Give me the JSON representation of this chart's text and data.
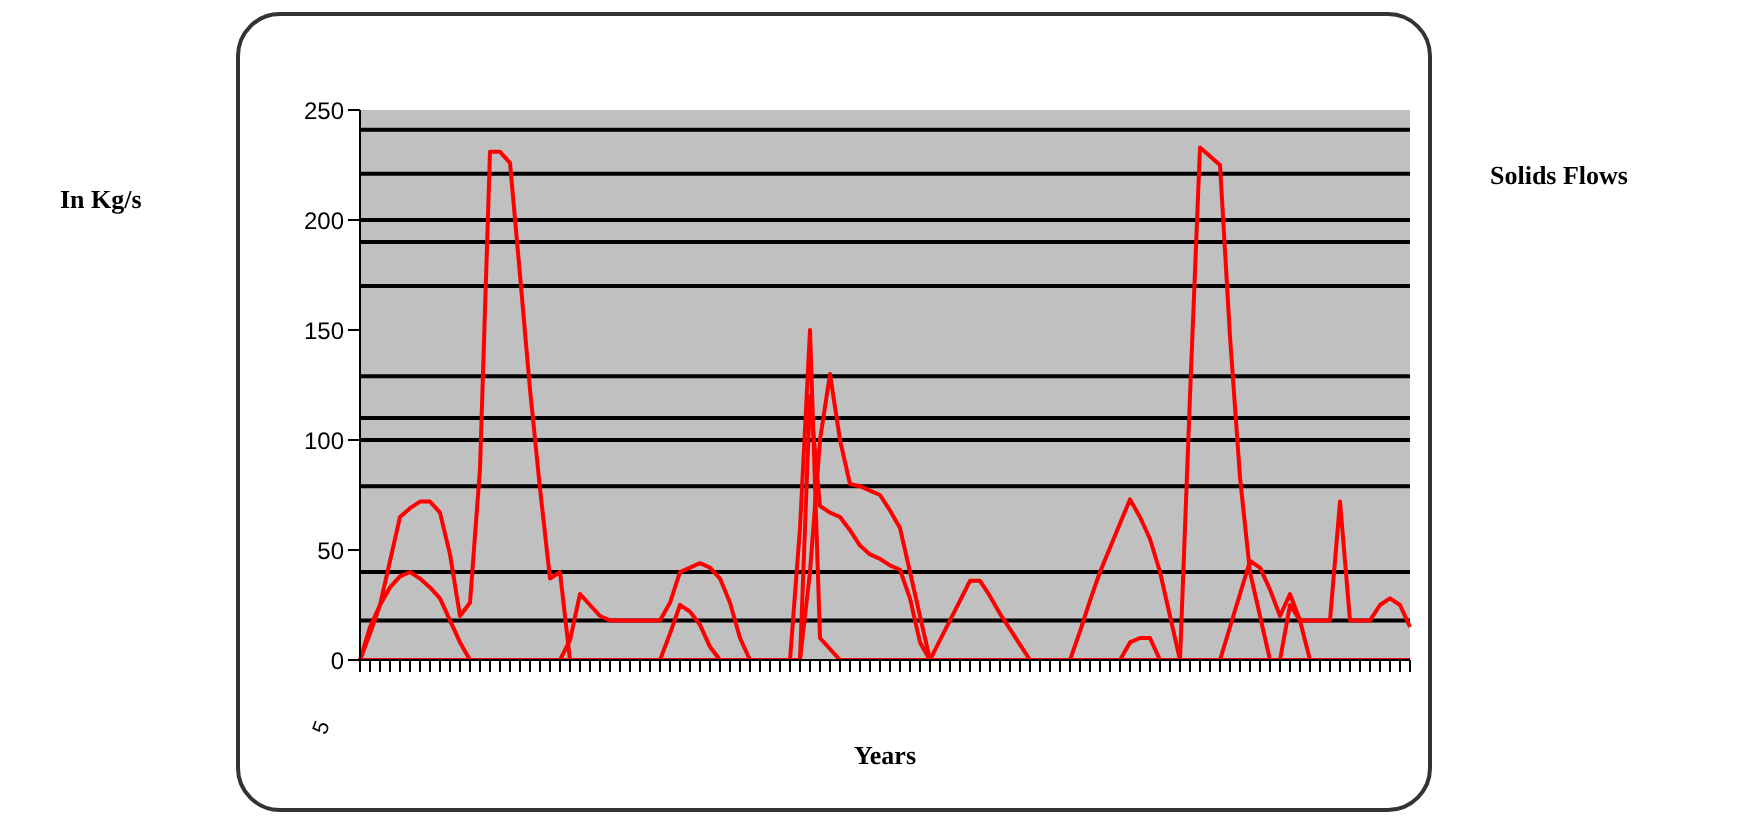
{
  "chart_data": {
    "type": "line",
    "title": "Solids Flows",
    "xlabel": "Years",
    "annotations": [
      "In Kg/s",
      "5"
    ],
    "categories": [
      null,
      null,
      null,
      null,
      null,
      null,
      null,
      null,
      null,
      null,
      null,
      null,
      null,
      null,
      null,
      null,
      null,
      null,
      null,
      null,
      null,
      null,
      null,
      null,
      null,
      null,
      null,
      null,
      null,
      null,
      null,
      null,
      null,
      null,
      null,
      null,
      null,
      null,
      null,
      null,
      null,
      null,
      null,
      null,
      null,
      null,
      null,
      null,
      null,
      null,
      null,
      null,
      null,
      null,
      null,
      null,
      null,
      null,
      null,
      null,
      null,
      null,
      null,
      null,
      null,
      null,
      null,
      null,
      null,
      null,
      null,
      null,
      null,
      null,
      null,
      null,
      null,
      null,
      null,
      null,
      null,
      null,
      null,
      null,
      null,
      null,
      null,
      null,
      null,
      null,
      null,
      null,
      null,
      null,
      null,
      null,
      null,
      null,
      null,
      null,
      null,
      null,
      null,
      null,
      null,
      null
    ],
    "series": [
      {
        "color": "#ff0000",
        "values": [
          0,
          12,
          25,
          45,
          65,
          69,
          72,
          72,
          67,
          48,
          20,
          26,
          87,
          231,
          231,
          226,
          175,
          123,
          78,
          37,
          40,
          0,
          0,
          0,
          0,
          0,
          0,
          0,
          0,
          0,
          0,
          12,
          25,
          22,
          16,
          6,
          0,
          0,
          0,
          0,
          0,
          0,
          0,
          0,
          60,
          150,
          10,
          5,
          0,
          0,
          0,
          0,
          0,
          0,
          0,
          0,
          0,
          0,
          0,
          0,
          0,
          0,
          0,
          0,
          0,
          0,
          0,
          0,
          0,
          0,
          0,
          0,
          0,
          0,
          0,
          0,
          0,
          8,
          10,
          10,
          0,
          0,
          0,
          120,
          233,
          229,
          225,
          147,
          83,
          40,
          20,
          0,
          0,
          0,
          0,
          0,
          0,
          0,
          0,
          0,
          0,
          0,
          0,
          0,
          0,
          0
        ]
      },
      {
        "color": "#ff0000",
        "values": [
          0,
          15,
          25,
          33,
          38,
          40,
          37,
          33,
          28,
          18,
          8,
          0,
          0,
          0,
          0,
          0,
          0,
          0,
          0,
          0,
          0,
          9,
          30,
          25,
          20,
          18,
          18,
          18,
          18,
          18,
          18,
          26,
          40,
          42,
          44,
          42,
          37,
          26,
          10,
          0,
          0,
          0,
          0,
          0,
          0,
          40,
          100,
          130,
          100,
          80,
          79,
          77,
          75,
          68,
          60,
          40,
          20,
          0,
          9,
          18,
          27,
          36,
          36,
          29,
          21,
          14,
          7,
          0,
          0,
          0,
          0,
          0,
          13,
          27,
          40,
          51,
          62,
          73,
          65,
          55,
          40,
          20,
          0,
          0,
          0,
          0,
          0,
          15,
          30,
          45,
          42,
          32,
          20,
          30,
          18,
          0,
          0,
          0,
          0,
          0,
          0,
          0,
          0,
          0,
          0,
          0
        ]
      },
      {
        "color": "#ff0000",
        "values": [
          0,
          0,
          0,
          0,
          0,
          0,
          0,
          0,
          0,
          0,
          0,
          0,
          0,
          0,
          0,
          0,
          0,
          0,
          0,
          0,
          0,
          0,
          0,
          0,
          0,
          0,
          0,
          0,
          0,
          0,
          0,
          0,
          0,
          0,
          0,
          0,
          0,
          0,
          0,
          0,
          0,
          0,
          0,
          0,
          0,
          120,
          70,
          67,
          65,
          59,
          52,
          48,
          46,
          43,
          41,
          28,
          8,
          0,
          0,
          0,
          0,
          0,
          0,
          0,
          0,
          0,
          0,
          0,
          0,
          0,
          0,
          0,
          0,
          0,
          0,
          0,
          0,
          0,
          0,
          0,
          0,
          0,
          0,
          0,
          0,
          0,
          0,
          0,
          0,
          0,
          0,
          0,
          0,
          25,
          18,
          18,
          18,
          18,
          72,
          18,
          18,
          18,
          25,
          28,
          25,
          15
        ]
      }
    ],
    "ylim": [
      0,
      250
    ],
    "yticks": [
      0,
      50,
      100,
      150,
      200,
      250
    ],
    "ref_lines": [
      {
        "axis": "y",
        "value": 241,
        "color": "#000000"
      },
      {
        "axis": "y",
        "value": 221,
        "color": "#000000"
      },
      {
        "axis": "y",
        "value": 200,
        "color": "#000000"
      },
      {
        "axis": "y",
        "value": 190,
        "color": "#000000"
      },
      {
        "axis": "y",
        "value": 170,
        "color": "#000000"
      },
      {
        "axis": "y",
        "value": 129,
        "color": "#000000"
      },
      {
        "axis": "y",
        "value": 110,
        "color": "#000000"
      },
      {
        "axis": "y",
        "value": 100,
        "color": "#000000"
      },
      {
        "axis": "y",
        "value": 79,
        "color": "#000000"
      },
      {
        "axis": "y",
        "value": 40,
        "color": "#000000"
      },
      {
        "axis": "y",
        "value": 18,
        "color": "#000000"
      }
    ],
    "grid": false,
    "legend": false,
    "marker": "none",
    "line_style": "solid"
  }
}
